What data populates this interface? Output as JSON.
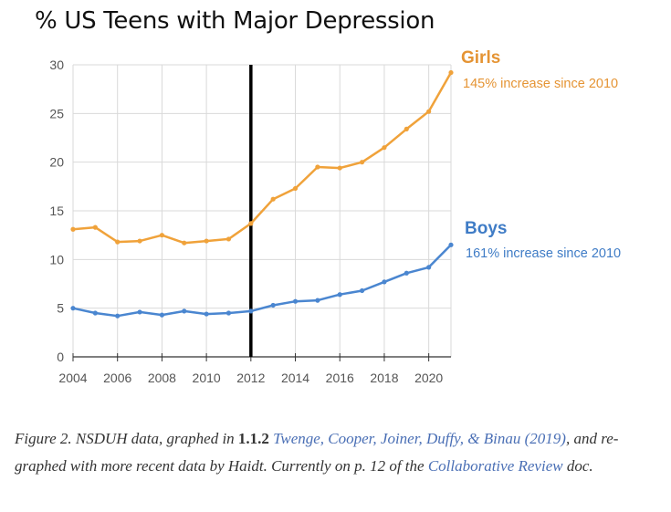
{
  "chart_data": {
    "type": "line",
    "title": "% US Teens with Major Depression",
    "x": [
      2004,
      2005,
      2006,
      2007,
      2008,
      2009,
      2010,
      2011,
      2012,
      2013,
      2014,
      2015,
      2016,
      2017,
      2018,
      2019,
      2020,
      2021
    ],
    "xticks": [
      "2004",
      "2006",
      "2008",
      "2010",
      "2012",
      "2014",
      "2016",
      "2018",
      "2020"
    ],
    "yticks": [
      "0",
      "5",
      "10",
      "15",
      "20",
      "25",
      "30"
    ],
    "xlim": [
      2004,
      2021
    ],
    "ylim": [
      0,
      30
    ],
    "grid": true,
    "vertical_marker": 2012,
    "series": [
      {
        "name": "Girls",
        "annotation": "145% increase since 2010",
        "color": "#f0a23a",
        "values": [
          13.1,
          13.3,
          11.8,
          11.9,
          12.5,
          11.7,
          11.9,
          12.1,
          13.7,
          16.2,
          17.3,
          19.5,
          19.4,
          20.0,
          21.5,
          23.4,
          25.2,
          29.2
        ]
      },
      {
        "name": "Boys",
        "annotation": "161% increase since 2010",
        "color": "#4a86d0",
        "values": [
          5.0,
          4.5,
          4.2,
          4.6,
          4.3,
          4.7,
          4.4,
          4.5,
          4.7,
          5.3,
          5.7,
          5.8,
          6.4,
          6.8,
          7.7,
          8.6,
          9.2,
          11.5
        ]
      }
    ]
  },
  "caption": {
    "figure_label": "Figure 2.",
    "text_1": " NSDUH data, graphed in ",
    "section": "1.1.2",
    "link_1": "Twenge, Cooper, Joiner, Duffy, & Binau (2019)",
    "text_2": ", and re-graphed with more recent data by Haidt. Currently on p. 12 of the ",
    "link_2": "Collaborative Review",
    "text_3": " doc."
  },
  "colors": {
    "grid": "#d9d9d9",
    "axis": "#333333",
    "tick_label": "#555555",
    "marker_line": "#000000"
  }
}
